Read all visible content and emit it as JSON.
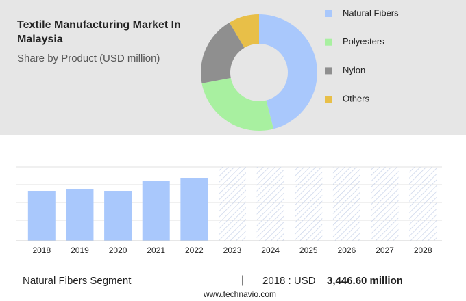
{
  "header": {
    "title": "Textile Manufacturing Market In Malaysia",
    "subtitle": "Share by Product (USD million)"
  },
  "chart_data": [
    {
      "type": "donut",
      "categories": [
        "Natural Fibers",
        "Polyesters",
        "Nylon",
        "Others"
      ],
      "values": [
        46,
        26,
        19.5,
        8.5
      ],
      "colors": [
        "#a9c8fc",
        "#a8f0a0",
        "#8f8f8f",
        "#e8bf48"
      ]
    },
    {
      "type": "bar",
      "categories": [
        "2018",
        "2019",
        "2020",
        "2021",
        "2022",
        "2023",
        "2024",
        "2025",
        "2026",
        "2027",
        "2028"
      ],
      "values": [
        3446.6,
        3588,
        3446.6,
        4155,
        4344,
        null,
        null,
        null,
        null,
        null,
        null
      ],
      "value_labels": [
        "3,446.60 million",
        null,
        null,
        null,
        null,
        null,
        null,
        null,
        null,
        null,
        null
      ],
      "color": "#a9c8fc",
      "ylim": [
        0,
        5100
      ]
    }
  ],
  "footer": {
    "segment": "Natural Fibers Segment",
    "separator": "|",
    "year_label": "2018 : USD",
    "source": "www.technavio.com"
  }
}
